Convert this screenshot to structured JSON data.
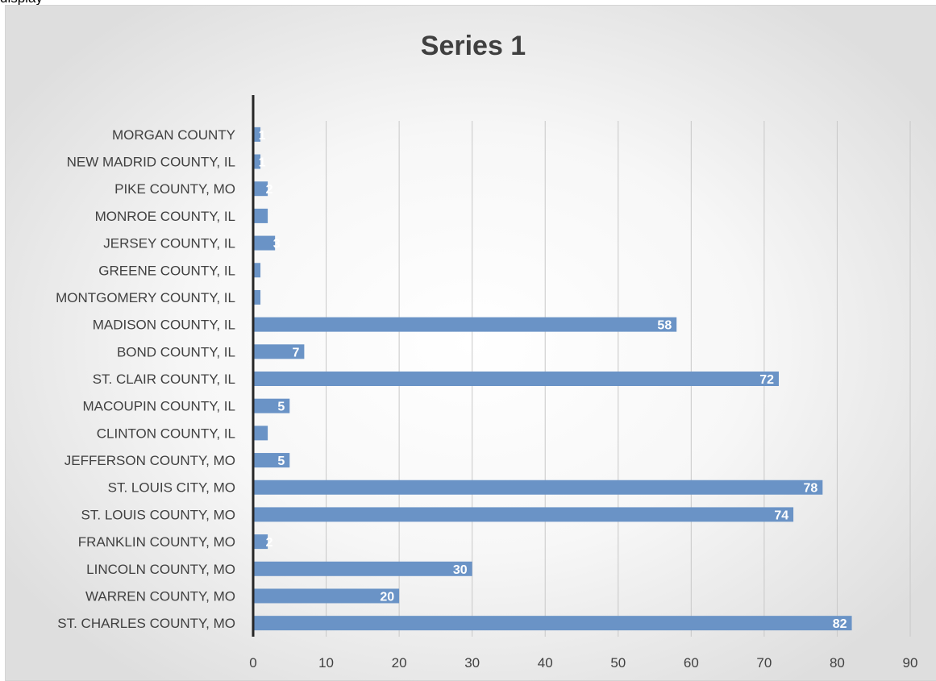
{
  "page_fragment": "display",
  "chart_data": {
    "type": "bar",
    "orientation": "horizontal",
    "title": "Series 1",
    "xlabel": "",
    "ylabel": "",
    "xlim": [
      0,
      90
    ],
    "x_ticks": [
      0,
      10,
      20,
      30,
      40,
      50,
      60,
      70,
      80,
      90
    ],
    "grid": "vertical",
    "bar_color": "#6a93c6",
    "categories": [
      "MORGAN COUNTY",
      "NEW MADRID COUNTY, IL",
      "PIKE COUNTY, MO",
      "MONROE COUNTY, IL",
      "JERSEY COUNTY, IL",
      "GREENE COUNTY, IL",
      "MONTGOMERY COUNTY, IL",
      "MADISON COUNTY, IL",
      "BOND COUNTY, IL",
      "ST. CLAIR COUNTY, IL",
      "MACOUPIN COUNTY, IL",
      "CLINTON COUNTY, IL",
      "JEFFERSON COUNTY, MO",
      "ST. LOUIS CITY, MO",
      "ST. LOUIS COUNTY, MO",
      "FRANKLIN COUNTY, MO",
      "LINCOLN COUNTY, MO",
      "WARREN COUNTY, MO",
      "ST. CHARLES COUNTY, MO"
    ],
    "values": [
      1,
      1,
      2,
      2,
      3,
      1,
      1,
      58,
      7,
      72,
      5,
      2,
      5,
      78,
      74,
      2,
      30,
      20,
      82
    ],
    "data_labels": [
      "1",
      "1",
      "2",
      "",
      "3",
      "",
      "",
      "58",
      "7",
      "72",
      "5",
      "",
      "5",
      "78",
      "74",
      "2",
      "30",
      "20",
      "82"
    ]
  }
}
